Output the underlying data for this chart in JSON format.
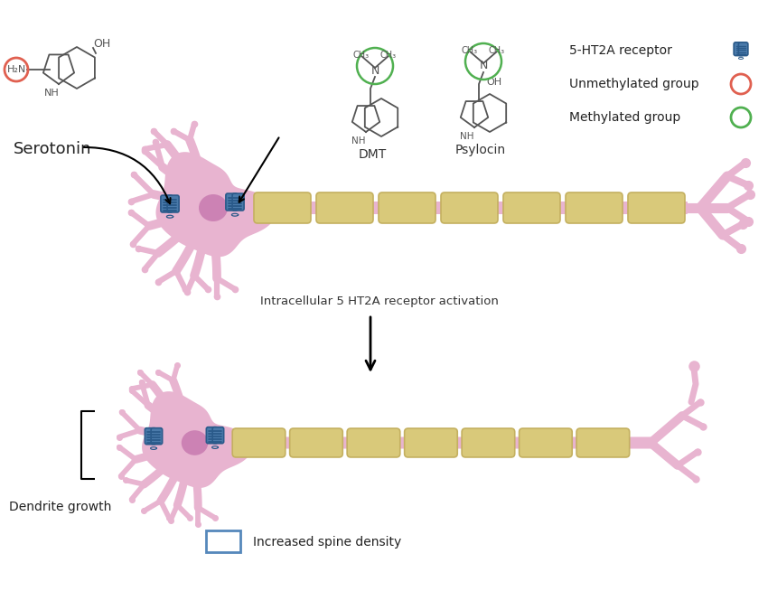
{
  "background_color": "#ffffff",
  "neuron_body_color": "#e8b4d0",
  "nucleus_color": "#c87ab0",
  "nucleus_outline": "#b060a0",
  "axon_color": "#e8b4d0",
  "myelin_color": "#d9c97a",
  "myelin_outline": "#c4b060",
  "receptor_color_dark": "#2a5a8a",
  "receptor_color_mid": "#4a7aaa",
  "receptor_color_light": "#6a9aca",
  "dendrite_color": "#e8b4d0",
  "legend_receptor": "5-HT2A receptor",
  "legend_unmethyl": "Unmethylated group",
  "legend_methyl": "Methylated group",
  "arrow_label": "Intracellular 5 HT2A receptor activation",
  "serotonin_label": "Serotonin",
  "dmt_label": "DMT",
  "psylocin_label": "Psylocin",
  "dendrite_label": "Dendrite growth",
  "spine_label": "Increased spine density",
  "unmethyl_circle_color": "#e06050",
  "methyl_circle_color": "#50b050",
  "mol_line_color": "#555555"
}
